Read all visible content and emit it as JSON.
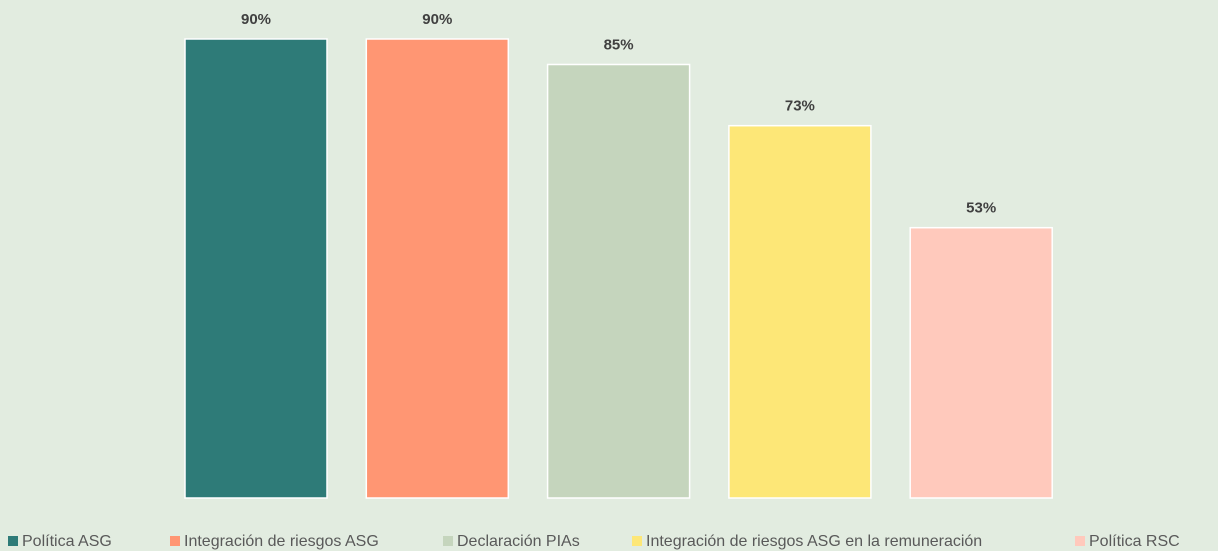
{
  "chart_data": {
    "type": "bar",
    "series": [
      {
        "name": "Política ASG",
        "color": "#2e7b78",
        "values": [
          90
        ],
        "value_labels": [
          "90%"
        ]
      },
      {
        "name": "Integración de riesgos ASG",
        "color": "#ff9673",
        "values": [
          90
        ],
        "value_labels": [
          "90%"
        ]
      },
      {
        "name": "Declaración PIAs",
        "color": "#c5d5bd",
        "values": [
          85
        ],
        "value_labels": [
          "85%"
        ]
      },
      {
        "name": "Integración de riesgos ASG en la remuneración",
        "color": "#fde777",
        "values": [
          73
        ],
        "value_labels": [
          "73%"
        ]
      },
      {
        "name": "Política RSC",
        "color": "#ffc9bc",
        "values": [
          53
        ],
        "value_labels": [
          "53%"
        ]
      }
    ]
  }
}
